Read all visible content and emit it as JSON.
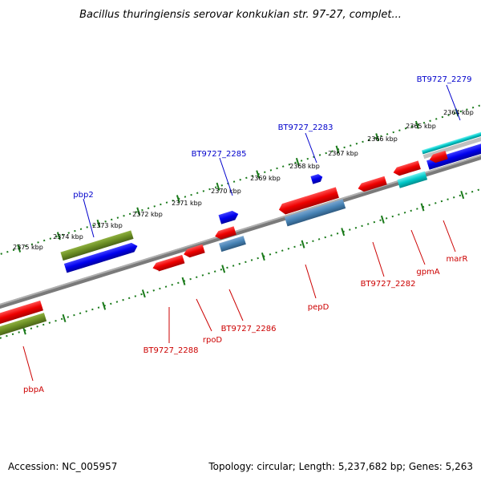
{
  "title": "Bacillus thuringiensis serovar konkukian str. 97-27, complet...",
  "footer": {
    "accession": "Accession: NC_005957",
    "topology": "Topology: circular; Length: 5,237,682 bp; Genes: 5,263"
  },
  "colors": {
    "backbone": "#808080",
    "forward_gene": "#0000ee",
    "reverse_gene": "#ee0000",
    "rna_gene": "#6b8e23",
    "steelblue_gene": "#4682b4",
    "cyan_gene": "#00c8c8",
    "tick": "#1a7a1a",
    "top_label": "#0000cc",
    "bottom_label": "#cc0000"
  },
  "ticks": [
    {
      "label": "2364 kbp"
    },
    {
      "label": "2365 kbp"
    },
    {
      "label": "2366 kbp"
    },
    {
      "label": "2367 kbp"
    },
    {
      "label": "2368 kbp"
    },
    {
      "label": "2369 kbp"
    },
    {
      "label": "2370 kbp"
    },
    {
      "label": "2371 kbp"
    },
    {
      "label": "2372 kbp"
    },
    {
      "label": "2373 kbp"
    },
    {
      "label": "2374 kbp"
    },
    {
      "label": "2375 kbp"
    }
  ],
  "top_labels": [
    {
      "name": "BT9727_2279"
    },
    {
      "name": "BT9727_2283"
    },
    {
      "name": "BT9727_2285"
    },
    {
      "name": "pbp2"
    }
  ],
  "bottom_labels": [
    {
      "name": "marR"
    },
    {
      "name": "gpmA"
    },
    {
      "name": "BT9727_2282"
    },
    {
      "name": "pepD"
    },
    {
      "name": "BT9727_2286"
    },
    {
      "name": "rpoD"
    },
    {
      "name": "BT9727_2288"
    },
    {
      "name": "pbpA"
    }
  ]
}
